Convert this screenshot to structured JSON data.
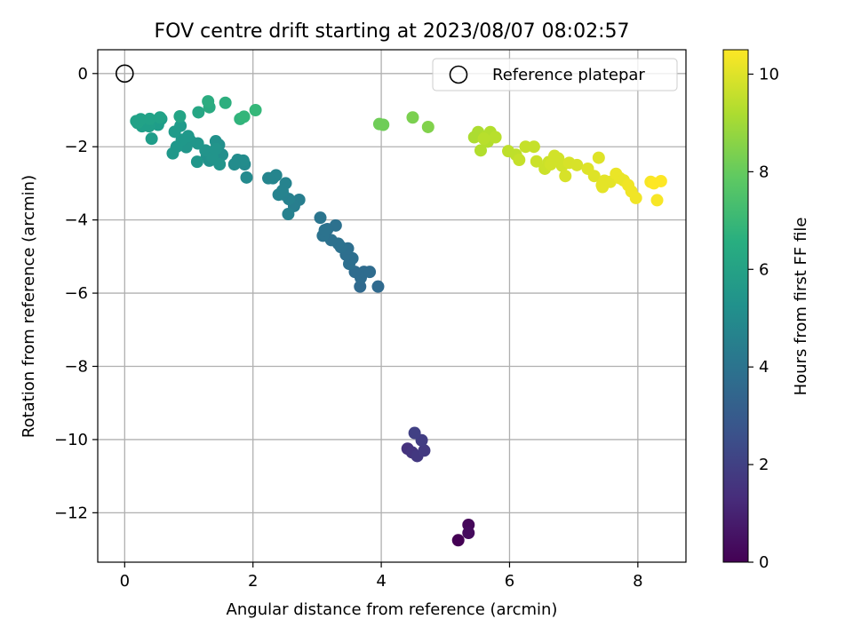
{
  "chart_data": {
    "type": "scatter",
    "title": "FOV centre drift starting at 2023/08/07 08:02:57",
    "xlabel": "Angular distance from reference (arcmin)",
    "ylabel": "Rotation from reference (arcmin)",
    "xlim": [
      -0.42,
      8.75
    ],
    "ylim": [
      -13.35,
      0.65
    ],
    "xticks": [
      0,
      2,
      4,
      6,
      8
    ],
    "yticks": [
      0,
      -2,
      -4,
      -6,
      -8,
      -10,
      -12
    ],
    "xtick_labels": [
      "0",
      "2",
      "4",
      "6",
      "8"
    ],
    "ytick_labels": [
      "0",
      "−2",
      "−4",
      "−6",
      "−8",
      "−10",
      "−12"
    ],
    "grid": true,
    "legend": {
      "location": "upper right",
      "entries": [
        {
          "label": "Reference platepar",
          "marker": "open-circle"
        }
      ]
    },
    "reference_point": {
      "x": 0,
      "y": 0
    },
    "colorbar": {
      "label": "Hours from first FF file",
      "colormap": "viridis",
      "range": [
        0,
        10.5
      ],
      "ticks": [
        0,
        2,
        4,
        6,
        8,
        10
      ],
      "tick_labels": [
        "0",
        "2",
        "4",
        "6",
        "8",
        "10"
      ]
    },
    "series": [
      {
        "x": [
          5.2,
          5.36,
          5.36,
          4.41,
          4.48,
          4.56,
          4.67,
          4.63,
          4.52,
          3.95,
          3.67,
          3.68,
          3.73,
          3.82,
          3.59,
          3.5,
          3.55,
          3.45,
          3.48,
          3.37,
          3.33,
          3.22,
          3.29,
          3.16,
          3.09,
          3.12,
          3.05,
          2.72,
          2.64,
          2.55,
          2.56,
          2.47,
          2.51,
          2.4,
          2.46,
          2.31,
          2.36,
          2.24,
          1.9,
          1.87,
          1.82,
          1.76,
          1.85,
          1.71,
          1.52,
          1.47,
          1.42,
          1.28,
          1.32,
          1.26,
          1.37,
          1.48,
          1.42,
          1.13,
          1.14,
          1.02,
          0.96,
          0.99,
          0.89,
          0.75,
          0.81,
          0.87,
          0.78,
          0.57,
          0.52,
          0.45,
          0.42,
          0.38,
          0.33,
          0.27,
          0.2,
          0.18,
          0.25,
          0.39,
          0.55,
          0.86,
          1.15,
          1.32,
          1.3,
          1.57,
          1.8,
          1.86,
          2.04,
          3.97,
          4.03,
          4.49,
          4.73,
          5.45,
          5.51,
          5.55,
          5.62,
          5.7,
          5.66,
          5.78,
          5.6,
          5.98,
          6.1,
          6.15,
          6.25,
          6.38,
          6.42,
          6.55,
          6.61,
          6.7,
          6.76,
          6.82,
          6.87,
          6.93,
          7.05,
          7.22,
          7.32,
          7.39,
          7.44,
          7.48,
          7.57,
          7.66,
          7.72,
          7.78,
          7.85,
          7.9,
          7.97,
          8.2,
          8.3,
          8.36,
          8.25,
          7.45,
          6.64
        ],
        "y": [
          -12.75,
          -12.33,
          -12.55,
          -10.25,
          -10.35,
          -10.45,
          -10.3,
          -10.02,
          -9.82,
          -5.82,
          -5.82,
          -5.58,
          -5.42,
          -5.42,
          -5.42,
          -5.2,
          -5.05,
          -4.95,
          -4.78,
          -4.74,
          -4.65,
          -4.55,
          -4.15,
          -4.25,
          -4.43,
          -4.28,
          -3.94,
          -3.45,
          -3.62,
          -3.84,
          -3.43,
          -3.3,
          -3.0,
          -3.31,
          -3.2,
          -2.86,
          -2.78,
          -2.86,
          -2.84,
          -2.48,
          -2.42,
          -2.36,
          -2.38,
          -2.48,
          -2.22,
          -1.95,
          -1.85,
          -2.24,
          -2.38,
          -2.1,
          -2.3,
          -2.48,
          -2.06,
          -2.41,
          -1.91,
          -1.83,
          -2.01,
          -1.71,
          -1.81,
          -2.18,
          -2.0,
          -1.43,
          -1.59,
          -1.24,
          -1.4,
          -1.3,
          -1.78,
          -1.44,
          -1.36,
          -1.44,
          -1.35,
          -1.3,
          -1.25,
          -1.24,
          -1.2,
          -1.17,
          -1.06,
          -0.92,
          -0.76,
          -0.8,
          -1.24,
          -1.18,
          -1.0,
          -1.38,
          -1.4,
          -1.2,
          -1.46,
          -1.74,
          -1.6,
          -2.1,
          -1.73,
          -1.6,
          -1.86,
          -1.74,
          -1.78,
          -2.12,
          -2.22,
          -2.36,
          -2.0,
          -2.0,
          -2.4,
          -2.6,
          -2.42,
          -2.25,
          -2.32,
          -2.52,
          -2.8,
          -2.44,
          -2.5,
          -2.6,
          -2.8,
          -2.3,
          -3.05,
          -2.93,
          -2.96,
          -2.74,
          -2.86,
          -2.92,
          -3.05,
          -3.22,
          -3.4,
          -2.96,
          -3.46,
          -2.94,
          -3.0,
          -3.1,
          -2.48
        ],
        "hours": [
          0.0,
          0.2,
          0.3,
          1.5,
          1.6,
          1.7,
          1.8,
          1.9,
          2.0,
          3.6,
          3.6,
          3.7,
          3.7,
          3.7,
          3.7,
          3.8,
          3.8,
          3.8,
          3.8,
          3.9,
          3.9,
          3.9,
          3.9,
          3.9,
          4.0,
          4.0,
          4.1,
          4.5,
          4.5,
          4.6,
          4.6,
          4.6,
          4.7,
          4.7,
          4.7,
          4.8,
          4.8,
          4.8,
          5.0,
          5.0,
          5.0,
          5.1,
          5.1,
          5.1,
          5.2,
          5.2,
          5.3,
          5.3,
          5.3,
          5.4,
          5.4,
          5.4,
          5.4,
          5.5,
          5.5,
          5.5,
          5.5,
          5.6,
          5.6,
          5.6,
          5.6,
          5.7,
          5.7,
          5.8,
          5.8,
          5.8,
          5.8,
          5.9,
          5.9,
          5.9,
          6.0,
          6.0,
          6.0,
          6.0,
          6.0,
          6.1,
          6.2,
          6.4,
          6.5,
          6.6,
          6.8,
          6.9,
          7.0,
          8.2,
          8.2,
          8.4,
          8.5,
          9.2,
          9.2,
          9.3,
          9.3,
          9.3,
          9.3,
          9.4,
          9.4,
          9.5,
          9.5,
          9.6,
          9.6,
          9.6,
          9.7,
          9.7,
          9.7,
          9.8,
          9.8,
          9.8,
          9.9,
          9.9,
          9.9,
          10.0,
          10.0,
          10.0,
          10.1,
          10.1,
          10.1,
          10.2,
          10.2,
          10.2,
          10.3,
          10.3,
          10.3,
          10.4,
          10.4,
          10.5,
          10.5,
          10.1,
          9.8
        ]
      }
    ]
  }
}
